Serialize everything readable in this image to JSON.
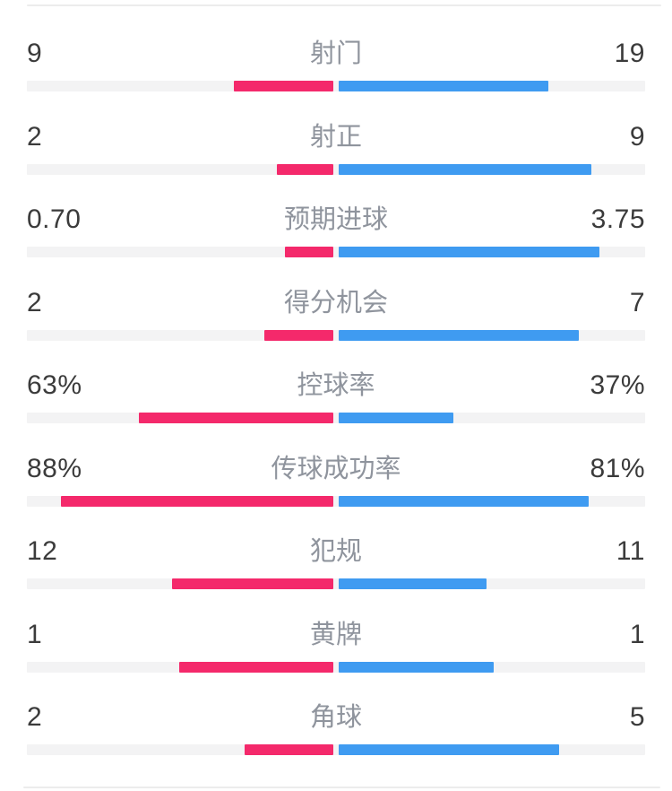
{
  "page": {
    "background": "#FFFFFF"
  },
  "colors": {
    "home_bar": "#F4296B",
    "away_bar": "#3F9BF1",
    "bar_track": "#F3F3F4",
    "divider": "#ECECEC",
    "value_text": "#3B3B3B",
    "label_text": "#8F949D"
  },
  "chart_data": {
    "type": "bar",
    "subtype": "diverging-horizontal-stat-comparison",
    "grid": false,
    "legend": "none",
    "categories": [
      "射门",
      "射正",
      "预期进球",
      "得分机会",
      "控球率",
      "传球成功率",
      "犯规",
      "黄牌",
      "角球"
    ],
    "series": [
      {
        "name": "left-team",
        "color": "#F4296B",
        "values": [
          9,
          2,
          0.7,
          2,
          63,
          88,
          12,
          1,
          2
        ]
      },
      {
        "name": "right-team",
        "color": "#3F9BF1",
        "values": [
          19,
          9,
          3.75,
          7,
          37,
          81,
          11,
          1,
          5
        ]
      }
    ],
    "rows": [
      {
        "label": "射门",
        "home": 9,
        "away": 19,
        "home_display": "9",
        "away_display": "19",
        "percent": false
      },
      {
        "label": "射正",
        "home": 2,
        "away": 9,
        "home_display": "2",
        "away_display": "9",
        "percent": false
      },
      {
        "label": "预期进球",
        "home": 0.7,
        "away": 3.75,
        "home_display": "0.70",
        "away_display": "3.75",
        "percent": false
      },
      {
        "label": "得分机会",
        "home": 2,
        "away": 7,
        "home_display": "2",
        "away_display": "7",
        "percent": false
      },
      {
        "label": "控球率",
        "home": 63,
        "away": 37,
        "home_display": "63%",
        "away_display": "37%",
        "percent": true
      },
      {
        "label": "传球成功率",
        "home": 88,
        "away": 81,
        "home_display": "88%",
        "away_display": "81%",
        "percent": true
      },
      {
        "label": "犯规",
        "home": 12,
        "away": 11,
        "home_display": "12",
        "away_display": "11",
        "percent": false
      },
      {
        "label": "黄牌",
        "home": 1,
        "away": 1,
        "home_display": "1",
        "away_display": "1",
        "percent": false
      },
      {
        "label": "角球",
        "home": 2,
        "away": 5,
        "home_display": "2",
        "away_display": "5",
        "percent": false
      }
    ]
  }
}
